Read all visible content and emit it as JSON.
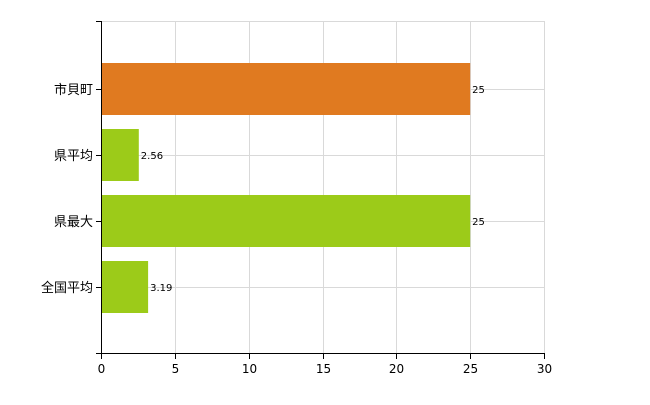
{
  "chart_data": {
    "type": "bar",
    "orientation": "horizontal",
    "categories": [
      "市貝町",
      "県平均",
      "県最大",
      "全国平均"
    ],
    "values": [
      25,
      2.56,
      25,
      3.19
    ],
    "data_labels": [
      "25",
      "2.56",
      "25",
      "3.19"
    ],
    "bar_colors": [
      "#e07a20",
      "#9ccb19",
      "#9ccb19",
      "#9ccb19"
    ],
    "title": "",
    "xlabel": "",
    "ylabel": "",
    "xlim": [
      0,
      30
    ],
    "x_ticks": [
      0,
      5,
      10,
      15,
      20,
      25,
      30
    ],
    "grid": true,
    "grid_color": "#d9d9d9",
    "axis_color": "#000000"
  }
}
